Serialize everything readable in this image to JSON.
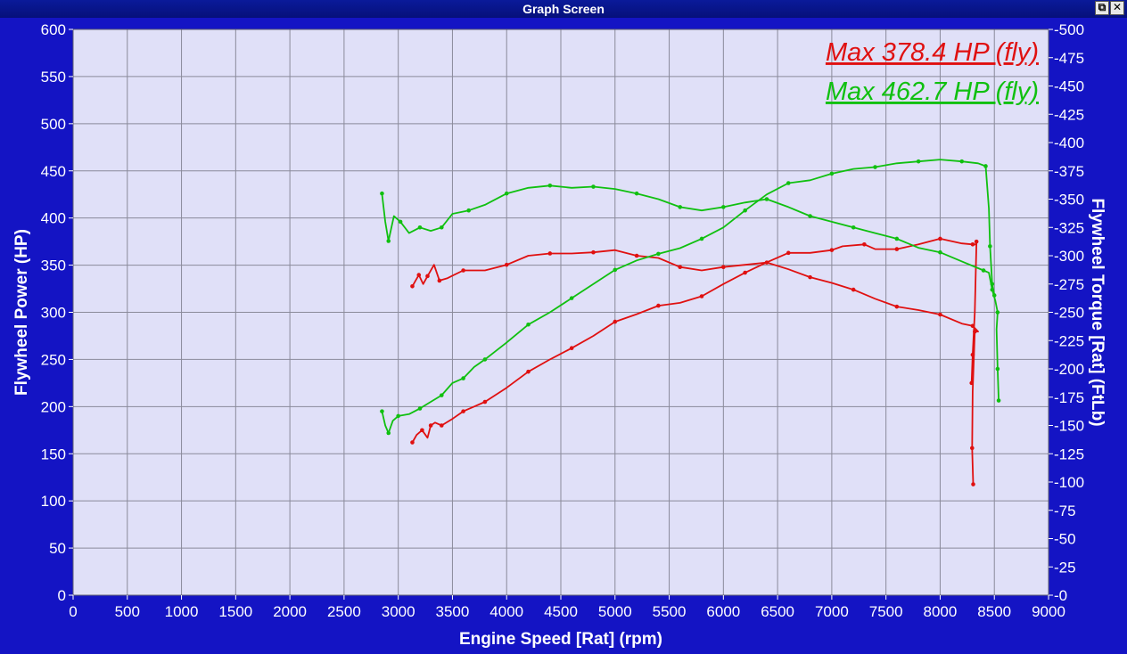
{
  "window": {
    "title": "Graph Screen",
    "restore_glyph": "⧉",
    "close_glyph": "✕"
  },
  "colors": {
    "background": "#1414c4",
    "plot_background": "#e0e0f8",
    "grid": "#8a8a9a",
    "run1": "#e01010",
    "run2": "#10c010"
  },
  "chart_data": {
    "type": "line",
    "xlabel": "Engine Speed [Rat] (rpm)",
    "ylabel": "Flywheel Power (HP)",
    "y2label": "Flywheel Torque [Rat] (FtLb)",
    "xlim": [
      0,
      9000
    ],
    "ylim": [
      0,
      600
    ],
    "y2lim": [
      0,
      500
    ],
    "xticks": [
      0,
      500,
      1000,
      1500,
      2000,
      2500,
      3000,
      3500,
      4000,
      4500,
      5000,
      5500,
      6000,
      6500,
      7000,
      7500,
      8000,
      8500,
      9000
    ],
    "yticks": [
      0,
      50,
      100,
      150,
      200,
      250,
      300,
      350,
      400,
      450,
      500,
      550,
      600
    ],
    "y2ticks": [
      0,
      25,
      50,
      75,
      100,
      125,
      150,
      175,
      200,
      225,
      250,
      275,
      300,
      325,
      350,
      375,
      400,
      425,
      450,
      475,
      500
    ],
    "grid": true,
    "legend": [
      {
        "text": "Max 378.4 HP (fly)",
        "color": "#e01010"
      },
      {
        "text": "Max 462.7 HP (fly)",
        "color": "#10c010"
      }
    ],
    "series": [
      {
        "axis": "left",
        "color": "#e01010",
        "points": [
          [
            3130,
            162
          ],
          [
            3170,
            170
          ],
          [
            3220,
            175
          ],
          [
            3270,
            167
          ],
          [
            3300,
            180
          ],
          [
            3340,
            183
          ],
          [
            3400,
            180
          ],
          [
            3500,
            187
          ],
          [
            3600,
            195
          ],
          [
            3700,
            200
          ],
          [
            3800,
            205
          ],
          [
            4000,
            220
          ],
          [
            4200,
            237
          ],
          [
            4400,
            250
          ],
          [
            4600,
            262
          ],
          [
            4800,
            275
          ],
          [
            5000,
            290
          ],
          [
            5200,
            298
          ],
          [
            5400,
            307
          ],
          [
            5600,
            310
          ],
          [
            5800,
            317
          ],
          [
            6000,
            330
          ],
          [
            6200,
            342
          ],
          [
            6400,
            353
          ],
          [
            6600,
            363
          ],
          [
            6800,
            363
          ],
          [
            7000,
            366
          ],
          [
            7100,
            370
          ],
          [
            7300,
            372
          ],
          [
            7400,
            367
          ],
          [
            7600,
            367
          ],
          [
            7800,
            372
          ],
          [
            8000,
            378
          ],
          [
            8200,
            373
          ],
          [
            8300,
            372
          ],
          [
            8330,
            372
          ],
          [
            8335,
            375
          ],
          [
            8320,
            300
          ],
          [
            8300,
            255
          ],
          [
            8290,
            225
          ]
        ]
      },
      {
        "axis": "right",
        "color": "#e01010",
        "points": [
          [
            3130,
            273
          ],
          [
            3160,
            278
          ],
          [
            3190,
            283
          ],
          [
            3230,
            275
          ],
          [
            3270,
            282
          ],
          [
            3330,
            292
          ],
          [
            3380,
            278
          ],
          [
            3450,
            280
          ],
          [
            3600,
            287
          ],
          [
            3800,
            287
          ],
          [
            4000,
            292
          ],
          [
            4200,
            300
          ],
          [
            4400,
            302
          ],
          [
            4600,
            302
          ],
          [
            4800,
            303
          ],
          [
            5000,
            305
          ],
          [
            5200,
            300
          ],
          [
            5400,
            298
          ],
          [
            5600,
            290
          ],
          [
            5800,
            287
          ],
          [
            6000,
            290
          ],
          [
            6200,
            292
          ],
          [
            6400,
            294
          ],
          [
            6600,
            288
          ],
          [
            6800,
            281
          ],
          [
            7000,
            276
          ],
          [
            7200,
            270
          ],
          [
            7400,
            262
          ],
          [
            7600,
            255
          ],
          [
            7800,
            252
          ],
          [
            8000,
            248
          ],
          [
            8200,
            240
          ],
          [
            8300,
            238
          ],
          [
            8350,
            233
          ],
          [
            8320,
            233
          ],
          [
            8300,
            180
          ],
          [
            8295,
            130
          ],
          [
            8305,
            98
          ]
        ]
      },
      {
        "axis": "left",
        "color": "#10c010",
        "points": [
          [
            2850,
            195
          ],
          [
            2880,
            180
          ],
          [
            2910,
            172
          ],
          [
            2950,
            185
          ],
          [
            3000,
            190
          ],
          [
            3100,
            192
          ],
          [
            3200,
            198
          ],
          [
            3300,
            205
          ],
          [
            3400,
            212
          ],
          [
            3500,
            225
          ],
          [
            3600,
            230
          ],
          [
            3700,
            242
          ],
          [
            3800,
            250
          ],
          [
            4000,
            268
          ],
          [
            4200,
            287
          ],
          [
            4400,
            300
          ],
          [
            4600,
            315
          ],
          [
            4800,
            330
          ],
          [
            5000,
            345
          ],
          [
            5200,
            355
          ],
          [
            5400,
            362
          ],
          [
            5600,
            368
          ],
          [
            5800,
            378
          ],
          [
            6000,
            390
          ],
          [
            6200,
            408
          ],
          [
            6400,
            425
          ],
          [
            6600,
            437
          ],
          [
            6800,
            440
          ],
          [
            7000,
            447
          ],
          [
            7200,
            452
          ],
          [
            7400,
            454
          ],
          [
            7600,
            458
          ],
          [
            7800,
            460
          ],
          [
            8000,
            462
          ],
          [
            8200,
            460
          ],
          [
            8350,
            458
          ],
          [
            8420,
            455
          ],
          [
            8450,
            410
          ],
          [
            8460,
            370
          ],
          [
            8470,
            350
          ],
          [
            8480,
            330
          ],
          [
            8500,
            318
          ]
        ]
      },
      {
        "axis": "right",
        "color": "#10c010",
        "points": [
          [
            2850,
            355
          ],
          [
            2880,
            330
          ],
          [
            2910,
            313
          ],
          [
            2960,
            335
          ],
          [
            3020,
            330
          ],
          [
            3100,
            320
          ],
          [
            3200,
            325
          ],
          [
            3300,
            322
          ],
          [
            3400,
            325
          ],
          [
            3500,
            337
          ],
          [
            3650,
            340
          ],
          [
            3800,
            345
          ],
          [
            4000,
            355
          ],
          [
            4200,
            360
          ],
          [
            4400,
            362
          ],
          [
            4600,
            360
          ],
          [
            4800,
            361
          ],
          [
            5000,
            359
          ],
          [
            5200,
            355
          ],
          [
            5400,
            350
          ],
          [
            5600,
            343
          ],
          [
            5800,
            340
          ],
          [
            6000,
            343
          ],
          [
            6200,
            347
          ],
          [
            6400,
            350
          ],
          [
            6600,
            343
          ],
          [
            6800,
            335
          ],
          [
            7000,
            330
          ],
          [
            7200,
            325
          ],
          [
            7400,
            320
          ],
          [
            7600,
            315
          ],
          [
            7800,
            307
          ],
          [
            8000,
            303
          ],
          [
            8200,
            295
          ],
          [
            8400,
            287
          ],
          [
            8450,
            285
          ],
          [
            8480,
            270
          ],
          [
            8510,
            260
          ],
          [
            8530,
            250
          ],
          [
            8520,
            235
          ],
          [
            8530,
            200
          ],
          [
            8540,
            172
          ]
        ]
      }
    ]
  }
}
